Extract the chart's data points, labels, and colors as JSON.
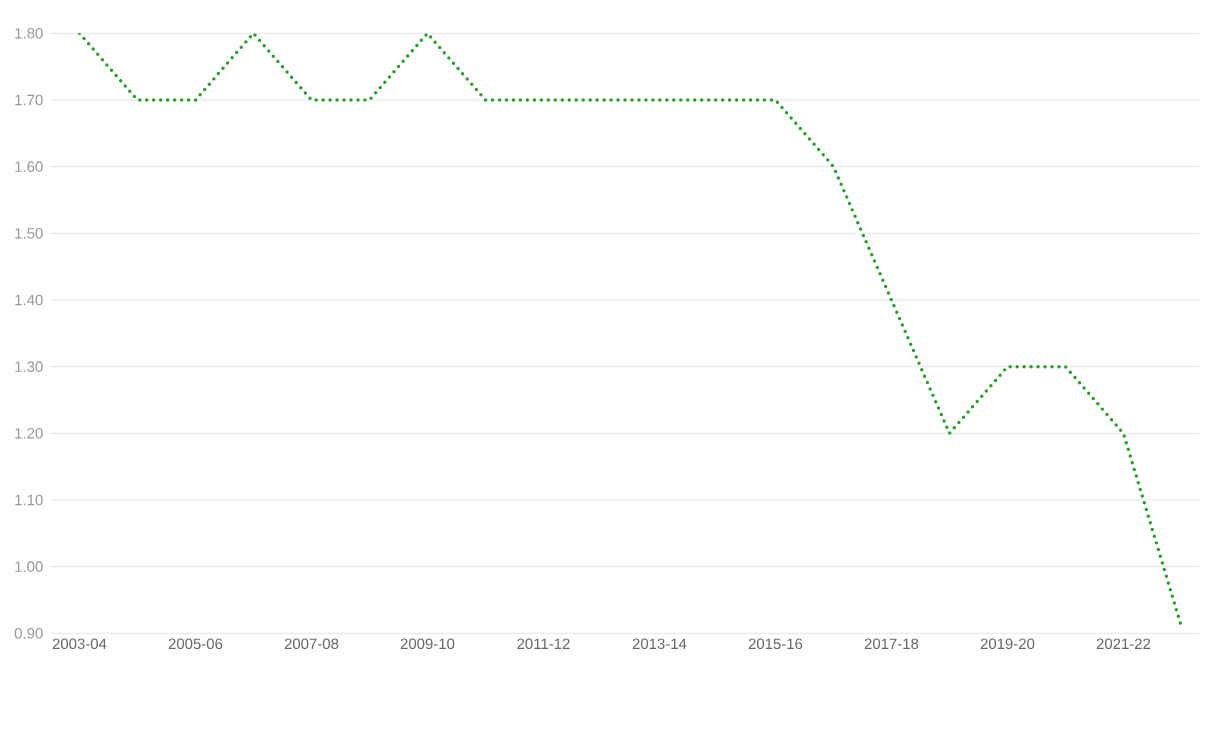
{
  "chart_data": {
    "type": "line",
    "categories": [
      "2003-04",
      null,
      "2005-06",
      null,
      "2007-08",
      null,
      "2009-10",
      null,
      "2011-12",
      null,
      "2013-14",
      null,
      "2015-16",
      null,
      "2017-18",
      null,
      "2019-20",
      null,
      "2021-22",
      null
    ],
    "series": [
      {
        "color": "#2a9d2a",
        "values": [
          1.8,
          1.7,
          1.7,
          1.8,
          1.7,
          1.7,
          1.8,
          1.7,
          1.7,
          1.7,
          1.7,
          1.7,
          1.7,
          1.6,
          1.4,
          1.2,
          1.3,
          1.3,
          1.2,
          0.91
        ]
      }
    ],
    "ylim": [
      0.9,
      1.8
    ],
    "yticks": [
      {
        "value": 0.9,
        "label": "0.90"
      },
      {
        "value": 1.0,
        "label": "1.00"
      },
      {
        "value": 1.1,
        "label": "1.10"
      },
      {
        "value": 1.2,
        "label": "1.20"
      },
      {
        "value": 1.3,
        "label": "1.30"
      },
      {
        "value": 1.4,
        "label": "1.40"
      },
      {
        "value": 1.5,
        "label": "1.50"
      },
      {
        "value": 1.6,
        "label": "1.60"
      },
      {
        "value": 1.7,
        "label": "1.70"
      },
      {
        "value": 1.8,
        "label": "1.80"
      }
    ],
    "grid": "y",
    "marker": "none",
    "line_style": "dotted"
  }
}
